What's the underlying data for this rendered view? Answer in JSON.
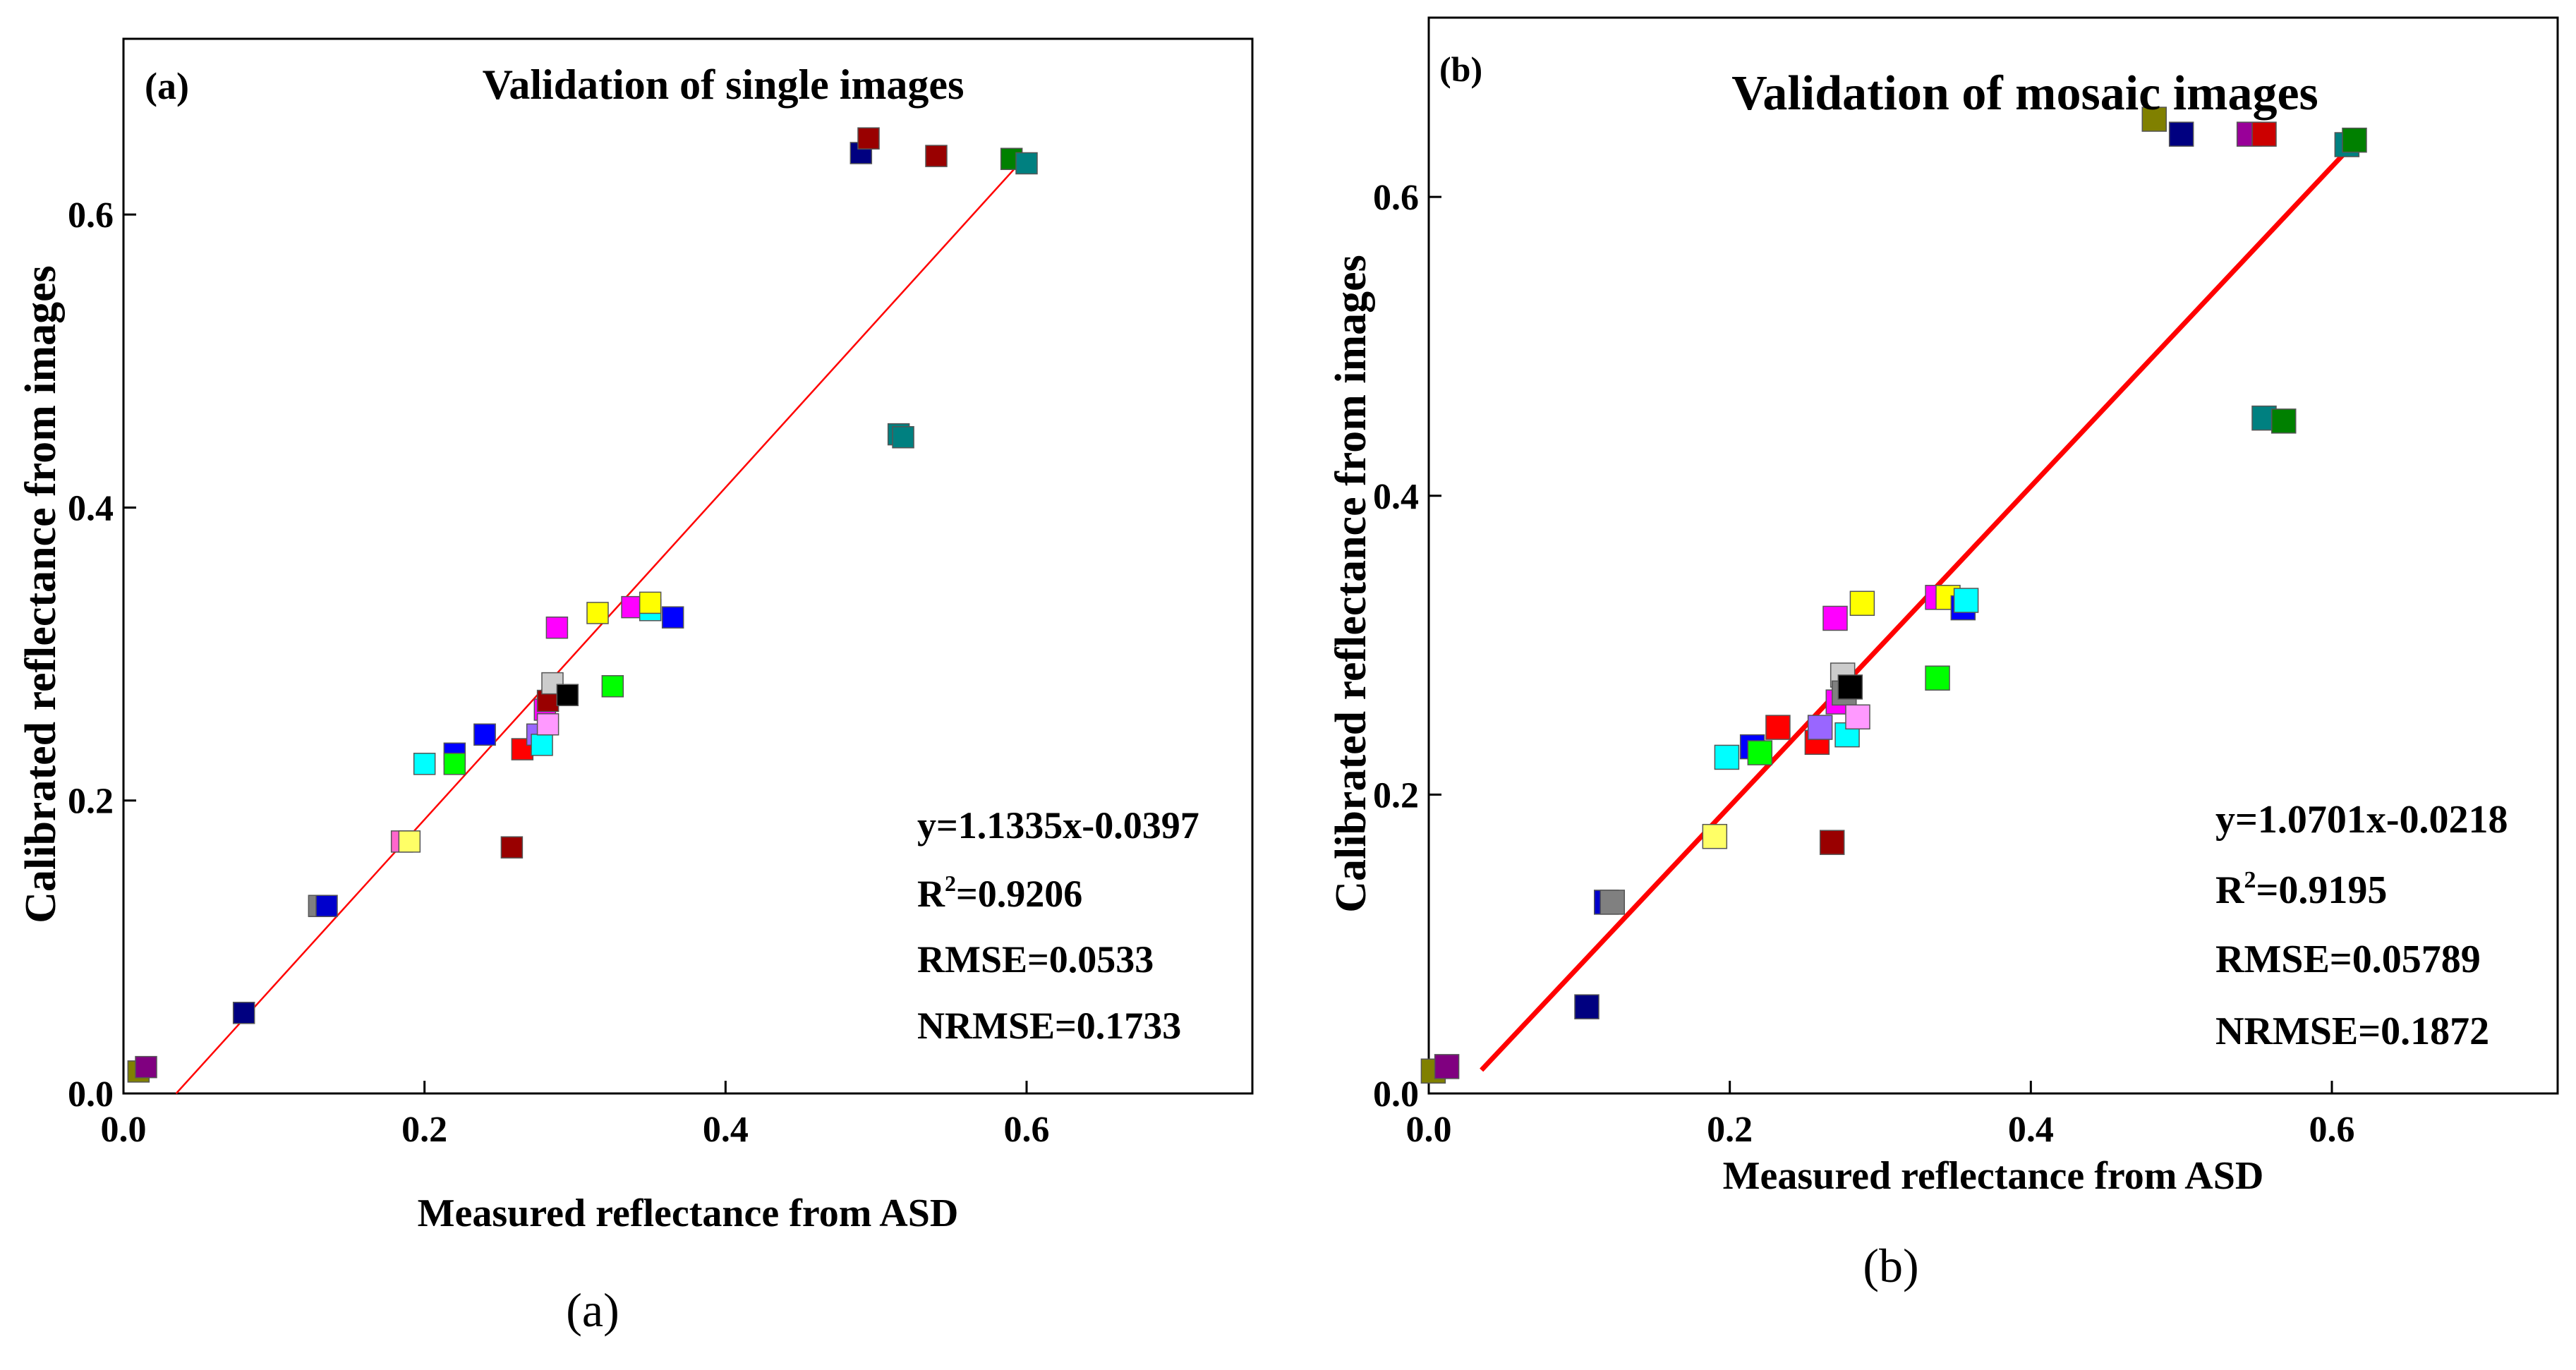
{
  "panel_captions": [
    "(a)",
    "(b)"
  ],
  "chart_data": [
    {
      "type": "scatter",
      "panel_label": "(a)",
      "title": "Validation of single images",
      "xlabel": "Measured reflectance from ASD",
      "ylabel": "Calibrated reflectance from images",
      "xlim": [
        0.0,
        0.75
      ],
      "ylim": [
        0.0,
        0.72
      ],
      "xticks": [
        "0.0",
        "0.2",
        "0.4",
        "0.6"
      ],
      "yticks": [
        "0.0",
        "0.2",
        "0.4",
        "0.6"
      ],
      "fit_line": {
        "slope": 1.1335,
        "intercept": -0.0397,
        "color": "#ff0000",
        "x_range": [
          0.035,
          0.6
        ]
      },
      "stats": [
        "y=1.1335x-0.0397",
        "R2=0.9206",
        "RMSE=0.0533",
        "NRMSE=0.1733"
      ],
      "points": [
        {
          "x": 0.01,
          "y": 0.015,
          "color": "#808000"
        },
        {
          "x": 0.015,
          "y": 0.018,
          "color": "#800080"
        },
        {
          "x": 0.08,
          "y": 0.055,
          "color": "#000080"
        },
        {
          "x": 0.13,
          "y": 0.128,
          "color": "#808080"
        },
        {
          "x": 0.135,
          "y": 0.128,
          "color": "#0000cc"
        },
        {
          "x": 0.185,
          "y": 0.172,
          "color": "#ff66cc"
        },
        {
          "x": 0.19,
          "y": 0.172,
          "color": "#ffff66"
        },
        {
          "x": 0.2,
          "y": 0.225,
          "color": "#00ffff"
        },
        {
          "x": 0.22,
          "y": 0.232,
          "color": "#0000ff"
        },
        {
          "x": 0.22,
          "y": 0.225,
          "color": "#00ff00"
        },
        {
          "x": 0.24,
          "y": 0.245,
          "color": "#ff0000"
        },
        {
          "x": 0.24,
          "y": 0.245,
          "color": "#0000ff"
        },
        {
          "x": 0.258,
          "y": 0.168,
          "color": "#990000"
        },
        {
          "x": 0.265,
          "y": 0.235,
          "color": "#ff0000"
        },
        {
          "x": 0.275,
          "y": 0.245,
          "color": "#9966ff"
        },
        {
          "x": 0.278,
          "y": 0.238,
          "color": "#00ffff"
        },
        {
          "x": 0.28,
          "y": 0.262,
          "color": "#ff00ff"
        },
        {
          "x": 0.282,
          "y": 0.268,
          "color": "#990000"
        },
        {
          "x": 0.282,
          "y": 0.252,
          "color": "#ff99ff"
        },
        {
          "x": 0.285,
          "y": 0.28,
          "color": "#cccccc"
        },
        {
          "x": 0.288,
          "y": 0.318,
          "color": "#ff00ff"
        },
        {
          "x": 0.295,
          "y": 0.272,
          "color": "#000000"
        },
        {
          "x": 0.315,
          "y": 0.328,
          "color": "#ffff00"
        },
        {
          "x": 0.325,
          "y": 0.278,
          "color": "#00ff00"
        },
        {
          "x": 0.338,
          "y": 0.332,
          "color": "#ff00ff"
        },
        {
          "x": 0.35,
          "y": 0.33,
          "color": "#00ffff"
        },
        {
          "x": 0.35,
          "y": 0.335,
          "color": "#ffff00"
        },
        {
          "x": 0.365,
          "y": 0.325,
          "color": "#0000ff"
        },
        {
          "x": 0.49,
          "y": 0.642,
          "color": "#000080"
        },
        {
          "x": 0.495,
          "y": 0.652,
          "color": "#990000"
        },
        {
          "x": 0.515,
          "y": 0.45,
          "color": "#008080"
        },
        {
          "x": 0.518,
          "y": 0.448,
          "color": "#008080"
        },
        {
          "x": 0.54,
          "y": 0.64,
          "color": "#990000"
        },
        {
          "x": 0.59,
          "y": 0.638,
          "color": "#008000"
        },
        {
          "x": 0.6,
          "y": 0.635,
          "color": "#008080"
        }
      ]
    },
    {
      "type": "scatter",
      "panel_label": "(b)",
      "title": "Validation of mosaic images",
      "xlabel": "Measured reflectance from ASD",
      "ylabel": "Calibrated reflectance from images",
      "xlim": [
        0.0,
        0.75
      ],
      "ylim": [
        0.0,
        0.72
      ],
      "xticks": [
        "0.0",
        "0.2",
        "0.4",
        "0.6"
      ],
      "yticks": [
        "0.0",
        "0.2",
        "0.4",
        "0.6"
      ],
      "fit_line": {
        "slope": 1.0701,
        "intercept": -0.0218,
        "color": "#ff0000",
        "x_range": [
          0.035,
          0.62
        ]
      },
      "stats": [
        "y=1.0701x-0.0218",
        "R2=0.9195",
        "RMSE=0.05789",
        "NRMSE=0.1872"
      ],
      "points": [
        {
          "x": 0.003,
          "y": 0.015,
          "color": "#808000"
        },
        {
          "x": 0.012,
          "y": 0.018,
          "color": "#800080"
        },
        {
          "x": 0.105,
          "y": 0.058,
          "color": "#000080"
        },
        {
          "x": 0.118,
          "y": 0.128,
          "color": "#0000cc"
        },
        {
          "x": 0.122,
          "y": 0.128,
          "color": "#808080"
        },
        {
          "x": 0.19,
          "y": 0.172,
          "color": "#ffff66"
        },
        {
          "x": 0.198,
          "y": 0.225,
          "color": "#00ffff"
        },
        {
          "x": 0.215,
          "y": 0.232,
          "color": "#0000ff"
        },
        {
          "x": 0.22,
          "y": 0.228,
          "color": "#00ff00"
        },
        {
          "x": 0.232,
          "y": 0.245,
          "color": "#ff0000"
        },
        {
          "x": 0.258,
          "y": 0.235,
          "color": "#ff0000"
        },
        {
          "x": 0.26,
          "y": 0.245,
          "color": "#9966ff"
        },
        {
          "x": 0.268,
          "y": 0.168,
          "color": "#990000"
        },
        {
          "x": 0.27,
          "y": 0.318,
          "color": "#ff00ff"
        },
        {
          "x": 0.272,
          "y": 0.262,
          "color": "#ff00ff"
        },
        {
          "x": 0.275,
          "y": 0.28,
          "color": "#cccccc"
        },
        {
          "x": 0.276,
          "y": 0.268,
          "color": "#808080"
        },
        {
          "x": 0.278,
          "y": 0.24,
          "color": "#00ffff"
        },
        {
          "x": 0.28,
          "y": 0.272,
          "color": "#000000"
        },
        {
          "x": 0.285,
          "y": 0.252,
          "color": "#ff99ff"
        },
        {
          "x": 0.288,
          "y": 0.328,
          "color": "#ffff00"
        },
        {
          "x": 0.338,
          "y": 0.278,
          "color": "#00ff00"
        },
        {
          "x": 0.338,
          "y": 0.332,
          "color": "#ff00ff"
        },
        {
          "x": 0.345,
          "y": 0.332,
          "color": "#ffff00"
        },
        {
          "x": 0.355,
          "y": 0.325,
          "color": "#0000ff"
        },
        {
          "x": 0.357,
          "y": 0.33,
          "color": "#00ffff"
        },
        {
          "x": 0.482,
          "y": 0.652,
          "color": "#808000"
        },
        {
          "x": 0.5,
          "y": 0.642,
          "color": "#000080"
        },
        {
          "x": 0.545,
          "y": 0.642,
          "color": "#990099"
        },
        {
          "x": 0.555,
          "y": 0.642,
          "color": "#cc0000"
        },
        {
          "x": 0.555,
          "y": 0.452,
          "color": "#008080"
        },
        {
          "x": 0.568,
          "y": 0.45,
          "color": "#008000"
        },
        {
          "x": 0.61,
          "y": 0.635,
          "color": "#008080"
        },
        {
          "x": 0.615,
          "y": 0.638,
          "color": "#008000"
        }
      ]
    }
  ]
}
